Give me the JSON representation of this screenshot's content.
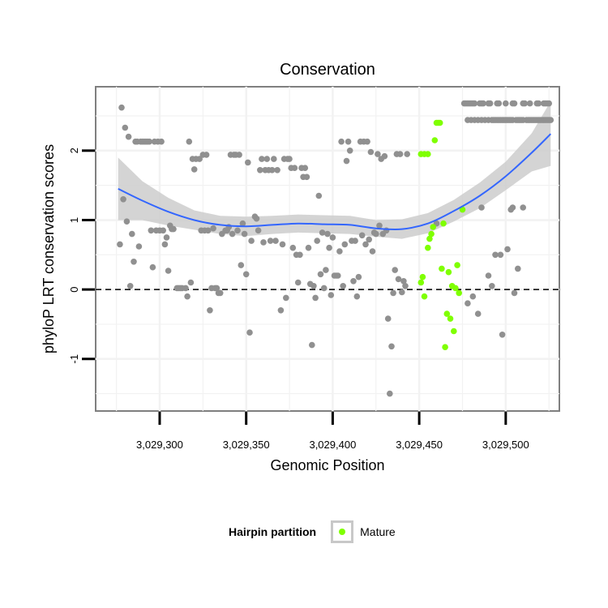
{
  "chart_data": {
    "type": "scatter",
    "title": "Conservation",
    "xlabel": "Genomic Position",
    "ylabel": "phyloP LRT conservation scores",
    "xlim": [
      3029263,
      3029531
    ],
    "ylim": [
      -1.75,
      2.92
    ],
    "x_ticks": [
      3029300,
      3029350,
      3029400,
      3029450,
      3029500
    ],
    "x_tick_labels": [
      "3,029,300",
      "3,029,350",
      "3,029,400",
      "3,029,450",
      "3,029,500"
    ],
    "y_ticks": [
      -1,
      0,
      1,
      2
    ],
    "y_tick_labels": [
      "-1",
      "0",
      "1",
      "2"
    ],
    "reference_line_y": 0,
    "grid": true,
    "legend": {
      "title": "Hairpin partition",
      "placement": "bottom",
      "entries": [
        {
          "label": "Mature",
          "color": "#7fff00"
        }
      ]
    },
    "colors": {
      "other": "#909090",
      "mature": "#7fff00",
      "smooth": "#3366ff",
      "band": "#cccccc"
    },
    "smooth": {
      "x": [
        3029276,
        3029290,
        3029305,
        3029320,
        3029335,
        3029350,
        3029365,
        3029380,
        3029395,
        3029410,
        3029425,
        3029440,
        3029455,
        3029470,
        3029485,
        3029500,
        3029515,
        3029526
      ],
      "y": [
        1.45,
        1.28,
        1.12,
        1.0,
        0.93,
        0.91,
        0.93,
        0.95,
        0.94,
        0.93,
        0.88,
        0.87,
        0.95,
        1.13,
        1.35,
        1.63,
        1.97,
        2.24
      ],
      "lower": [
        1.0,
        1.0,
        0.92,
        0.86,
        0.8,
        0.77,
        0.8,
        0.82,
        0.81,
        0.8,
        0.76,
        0.73,
        0.81,
        0.98,
        1.17,
        1.43,
        1.7,
        1.78
      ],
      "upper": [
        1.9,
        1.56,
        1.32,
        1.14,
        1.06,
        1.05,
        1.06,
        1.08,
        1.07,
        1.06,
        1.0,
        1.01,
        1.1,
        1.29,
        1.54,
        1.84,
        2.25,
        2.71
      ]
    },
    "series": [
      {
        "name": "Mature",
        "color": "#7fff00",
        "points": [
          [
            3029451,
            1.95
          ],
          [
            3029453,
            1.95
          ],
          [
            3029455,
            1.95
          ],
          [
            3029459,
            2.15
          ],
          [
            3029460,
            2.4
          ],
          [
            3029461,
            2.4
          ],
          [
            3029462,
            2.4
          ],
          [
            3029451,
            0.1
          ],
          [
            3029452,
            0.18
          ],
          [
            3029453,
            -0.1
          ],
          [
            3029455,
            0.6
          ],
          [
            3029456,
            0.73
          ],
          [
            3029457,
            0.8
          ],
          [
            3029458,
            0.9
          ],
          [
            3029463,
            0.3
          ],
          [
            3029464,
            0.95
          ],
          [
            3029465,
            -0.83
          ],
          [
            3029466,
            -0.35
          ],
          [
            3029467,
            0.25
          ],
          [
            3029468,
            -0.42
          ],
          [
            3029469,
            0.05
          ],
          [
            3029470,
            -0.6
          ],
          [
            3029471,
            0.02
          ],
          [
            3029472,
            0.35
          ],
          [
            3029473,
            -0.05
          ],
          [
            3029475,
            1.15
          ]
        ]
      },
      {
        "color": "#909090",
        "points": [
          [
            3029277,
            0.65
          ],
          [
            3029278,
            2.62
          ],
          [
            3029279,
            1.3
          ],
          [
            3029280,
            2.33
          ],
          [
            3029281,
            0.98
          ],
          [
            3029282,
            2.2
          ],
          [
            3029283,
            0.05
          ],
          [
            3029284,
            0.8
          ],
          [
            3029285,
            0.4
          ],
          [
            3029286,
            2.13
          ],
          [
            3029287,
            2.13
          ],
          [
            3029288,
            0.62
          ],
          [
            3029289,
            2.13
          ],
          [
            3029290,
            2.13
          ],
          [
            3029291,
            2.13
          ],
          [
            3029292,
            2.13
          ],
          [
            3029293,
            2.13
          ],
          [
            3029294,
            2.13
          ],
          [
            3029295,
            0.85
          ],
          [
            3029296,
            0.32
          ],
          [
            3029297,
            2.13
          ],
          [
            3029298,
            0.85
          ],
          [
            3029299,
            2.13
          ],
          [
            3029300,
            0.85
          ],
          [
            3029301,
            2.13
          ],
          [
            3029302,
            0.85
          ],
          [
            3029303,
            0.65
          ],
          [
            3029304,
            0.75
          ],
          [
            3029305,
            0.27
          ],
          [
            3029306,
            0.92
          ],
          [
            3029307,
            0.87
          ],
          [
            3029308,
            0.87
          ],
          [
            3029310,
            0.02
          ],
          [
            3029311,
            0.02
          ],
          [
            3029312,
            0.02
          ],
          [
            3029313,
            0.02
          ],
          [
            3029315,
            0.02
          ],
          [
            3029316,
            -0.1
          ],
          [
            3029317,
            2.13
          ],
          [
            3029318,
            0.1
          ],
          [
            3029319,
            1.88
          ],
          [
            3029320,
            1.73
          ],
          [
            3029321,
            1.88
          ],
          [
            3029323,
            1.88
          ],
          [
            3029324,
            0.85
          ],
          [
            3029325,
            1.94
          ],
          [
            3029326,
            0.85
          ],
          [
            3029327,
            1.94
          ],
          [
            3029328,
            0.85
          ],
          [
            3029329,
            -0.3
          ],
          [
            3029330,
            0.02
          ],
          [
            3029331,
            0.88
          ],
          [
            3029332,
            0.02
          ],
          [
            3029333,
            0.02
          ],
          [
            3029334,
            -0.05
          ],
          [
            3029335,
            -0.05
          ],
          [
            3029336,
            0.8
          ],
          [
            3029338,
            0.85
          ],
          [
            3029339,
            0.85
          ],
          [
            3029340,
            0.9
          ],
          [
            3029341,
            1.94
          ],
          [
            3029342,
            0.8
          ],
          [
            3029343,
            1.94
          ],
          [
            3029344,
            1.94
          ],
          [
            3029345,
            0.85
          ],
          [
            3029346,
            1.94
          ],
          [
            3029347,
            0.35
          ],
          [
            3029348,
            0.95
          ],
          [
            3029349,
            0.8
          ],
          [
            3029350,
            0.22
          ],
          [
            3029351,
            1.83
          ],
          [
            3029352,
            -0.62
          ],
          [
            3029353,
            0.7
          ],
          [
            3029355,
            1.05
          ],
          [
            3029356,
            1.02
          ],
          [
            3029357,
            0.85
          ],
          [
            3029358,
            1.72
          ],
          [
            3029359,
            1.88
          ],
          [
            3029360,
            0.68
          ],
          [
            3029361,
            1.72
          ],
          [
            3029362,
            1.88
          ],
          [
            3029363,
            1.72
          ],
          [
            3029364,
            0.7
          ],
          [
            3029365,
            1.72
          ],
          [
            3029366,
            1.88
          ],
          [
            3029367,
            0.7
          ],
          [
            3029368,
            1.72
          ],
          [
            3029370,
            -0.3
          ],
          [
            3029371,
            0.65
          ],
          [
            3029372,
            1.88
          ],
          [
            3029373,
            -0.12
          ],
          [
            3029374,
            1.88
          ],
          [
            3029375,
            1.88
          ],
          [
            3029376,
            1.75
          ],
          [
            3029377,
            0.6
          ],
          [
            3029378,
            1.75
          ],
          [
            3029379,
            0.5
          ],
          [
            3029380,
            0.1
          ],
          [
            3029381,
            0.5
          ],
          [
            3029382,
            1.75
          ],
          [
            3029383,
            1.62
          ],
          [
            3029384,
            1.75
          ],
          [
            3029385,
            1.62
          ],
          [
            3029386,
            0.6
          ],
          [
            3029387,
            0.08
          ],
          [
            3029388,
            -0.8
          ],
          [
            3029389,
            0.05
          ],
          [
            3029390,
            -0.12
          ],
          [
            3029391,
            0.7
          ],
          [
            3029392,
            1.35
          ],
          [
            3029393,
            0.22
          ],
          [
            3029394,
            0.82
          ],
          [
            3029395,
            0.02
          ],
          [
            3029396,
            0.28
          ],
          [
            3029397,
            0.8
          ],
          [
            3029398,
            0.6
          ],
          [
            3029399,
            -0.08
          ],
          [
            3029400,
            0.75
          ],
          [
            3029401,
            0.2
          ],
          [
            3029402,
            0.2
          ],
          [
            3029403,
            0.2
          ],
          [
            3029404,
            0.55
          ],
          [
            3029405,
            2.13
          ],
          [
            3029406,
            0.05
          ],
          [
            3029407,
            0.65
          ],
          [
            3029408,
            1.85
          ],
          [
            3029409,
            2.13
          ],
          [
            3029410,
            2.0
          ],
          [
            3029411,
            0.7
          ],
          [
            3029412,
            0.12
          ],
          [
            3029413,
            0.7
          ],
          [
            3029414,
            -0.1
          ],
          [
            3029415,
            0.18
          ],
          [
            3029416,
            2.13
          ],
          [
            3029417,
            0.78
          ],
          [
            3029418,
            2.13
          ],
          [
            3029419,
            0.65
          ],
          [
            3029420,
            2.13
          ],
          [
            3029421,
            0.72
          ],
          [
            3029422,
            1.98
          ],
          [
            3029423,
            0.55
          ],
          [
            3029424,
            0.82
          ],
          [
            3029425,
            0.8
          ],
          [
            3029426,
            1.95
          ],
          [
            3029427,
            0.92
          ],
          [
            3029428,
            1.88
          ],
          [
            3029429,
            0.8
          ],
          [
            3029430,
            1.92
          ],
          [
            3029431,
            0.85
          ],
          [
            3029432,
            -0.42
          ],
          [
            3029433,
            -1.5
          ],
          [
            3029434,
            -0.82
          ],
          [
            3029435,
            -0.05
          ],
          [
            3029436,
            0.28
          ],
          [
            3029437,
            1.95
          ],
          [
            3029438,
            0.15
          ],
          [
            3029439,
            1.95
          ],
          [
            3029440,
            -0.04
          ],
          [
            3029441,
            0.12
          ],
          [
            3029442,
            0.05
          ],
          [
            3029443,
            1.95
          ],
          [
            3029460,
            0.95
          ],
          [
            3029478,
            -0.2
          ],
          [
            3029481,
            -0.1
          ],
          [
            3029484,
            -0.35
          ],
          [
            3029486,
            1.18
          ],
          [
            3029490,
            0.2
          ],
          [
            3029492,
            0.05
          ],
          [
            3029494,
            0.5
          ],
          [
            3029497,
            0.5
          ],
          [
            3029498,
            -0.65
          ],
          [
            3029501,
            0.58
          ],
          [
            3029503,
            1.15
          ],
          [
            3029504,
            1.18
          ],
          [
            3029505,
            -0.05
          ],
          [
            3029507,
            0.3
          ],
          [
            3029510,
            1.18
          ],
          [
            3029476,
            2.68
          ],
          [
            3029477,
            2.68
          ],
          [
            3029478,
            2.68
          ],
          [
            3029479,
            2.68
          ],
          [
            3029480,
            2.68
          ],
          [
            3029481,
            2.68
          ],
          [
            3029482,
            2.68
          ],
          [
            3029485,
            2.68
          ],
          [
            3029486,
            2.68
          ],
          [
            3029487,
            2.68
          ],
          [
            3029490,
            2.68
          ],
          [
            3029491,
            2.68
          ],
          [
            3029495,
            2.68
          ],
          [
            3029496,
            2.68
          ],
          [
            3029500,
            2.68
          ],
          [
            3029504,
            2.68
          ],
          [
            3029505,
            2.68
          ],
          [
            3029510,
            2.68
          ],
          [
            3029511,
            2.68
          ],
          [
            3029514,
            2.68
          ],
          [
            3029518,
            2.68
          ],
          [
            3029519,
            2.68
          ],
          [
            3029522,
            2.68
          ],
          [
            3029523,
            2.68
          ],
          [
            3029524,
            2.68
          ],
          [
            3029525,
            2.68
          ],
          [
            3029478,
            2.44
          ],
          [
            3029480,
            2.44
          ],
          [
            3029482,
            2.44
          ],
          [
            3029484,
            2.44
          ],
          [
            3029486,
            2.44
          ],
          [
            3029488,
            2.44
          ],
          [
            3029490,
            2.44
          ],
          [
            3029492,
            2.44
          ],
          [
            3029493,
            2.44
          ],
          [
            3029494,
            2.44
          ],
          [
            3029495,
            2.44
          ],
          [
            3029496,
            2.44
          ],
          [
            3029497,
            2.44
          ],
          [
            3029498,
            2.44
          ],
          [
            3029499,
            2.44
          ],
          [
            3029500,
            2.44
          ],
          [
            3029501,
            2.44
          ],
          [
            3029502,
            2.44
          ],
          [
            3029503,
            2.44
          ],
          [
            3029504,
            2.44
          ],
          [
            3029506,
            2.44
          ],
          [
            3029507,
            2.44
          ],
          [
            3029508,
            2.44
          ],
          [
            3029509,
            2.44
          ],
          [
            3029510,
            2.44
          ],
          [
            3029512,
            2.44
          ],
          [
            3029513,
            2.44
          ],
          [
            3029514,
            2.44
          ],
          [
            3029515,
            2.44
          ],
          [
            3029516,
            2.44
          ],
          [
            3029517,
            2.44
          ],
          [
            3029518,
            2.44
          ],
          [
            3029519,
            2.44
          ],
          [
            3029520,
            2.44
          ],
          [
            3029521,
            2.44
          ],
          [
            3029522,
            2.44
          ],
          [
            3029523,
            2.44
          ],
          [
            3029524,
            2.44
          ],
          [
            3029525,
            2.44
          ],
          [
            3029526,
            2.44
          ]
        ]
      }
    ]
  }
}
